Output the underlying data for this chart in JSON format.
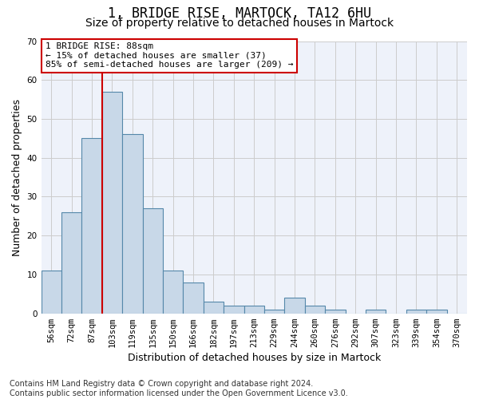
{
  "title1": "1, BRIDGE RISE, MARTOCK, TA12 6HU",
  "title2": "Size of property relative to detached houses in Martock",
  "xlabel": "Distribution of detached houses by size in Martock",
  "ylabel": "Number of detached properties",
  "categories": [
    "56sqm",
    "72sqm",
    "87sqm",
    "103sqm",
    "119sqm",
    "135sqm",
    "150sqm",
    "166sqm",
    "182sqm",
    "197sqm",
    "213sqm",
    "229sqm",
    "244sqm",
    "260sqm",
    "276sqm",
    "292sqm",
    "307sqm",
    "323sqm",
    "339sqm",
    "354sqm",
    "370sqm"
  ],
  "values": [
    11,
    26,
    45,
    57,
    46,
    27,
    11,
    8,
    3,
    2,
    2,
    1,
    4,
    2,
    1,
    0,
    1,
    0,
    1,
    1,
    0
  ],
  "bar_color": "#c8d8e8",
  "bar_edge_color": "#5588aa",
  "vline_color": "#cc0000",
  "annotation_text": "1 BRIDGE RISE: 88sqm\n← 15% of detached houses are smaller (37)\n85% of semi-detached houses are larger (209) →",
  "annotation_box_color": "#ffffff",
  "annotation_box_edge_color": "#cc0000",
  "ylim": [
    0,
    70
  ],
  "yticks": [
    0,
    10,
    20,
    30,
    40,
    50,
    60,
    70
  ],
  "grid_color": "#cccccc",
  "bg_color": "#eef2fa",
  "footnote": "Contains HM Land Registry data © Crown copyright and database right 2024.\nContains public sector information licensed under the Open Government Licence v3.0.",
  "title1_fontsize": 12,
  "title2_fontsize": 10,
  "xlabel_fontsize": 9,
  "ylabel_fontsize": 9,
  "tick_fontsize": 7.5,
  "annot_fontsize": 8,
  "footnote_fontsize": 7
}
